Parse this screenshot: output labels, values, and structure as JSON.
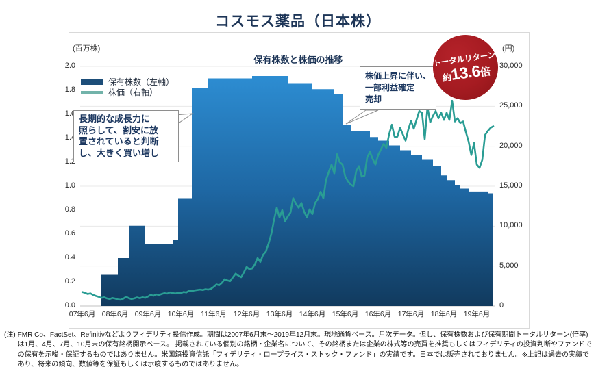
{
  "page": {
    "title": "コスモス薬品（日本株）"
  },
  "chart_data": {
    "type": "combo",
    "title": "保有株数と株価の推移",
    "x_axis": {
      "start": "2007-06",
      "end": "2019-12",
      "tick_labels": [
        "07年6月",
        "08年6月",
        "09年6月",
        "10年6月",
        "11年6月",
        "12年6月",
        "13年6月",
        "14年6月",
        "15年6月",
        "16年6月",
        "17年6月",
        "18年6月",
        "19年6月"
      ]
    },
    "left_axis": {
      "unit": "(百万株)",
      "label": "保有株数",
      "ylim": [
        0,
        2.0
      ],
      "tick_labels": [
        "2.0",
        "1.8",
        "1.6",
        "1.4",
        "1.2",
        "1.0",
        "0.8",
        "0.6",
        "0.4",
        "0.2",
        "0.0"
      ]
    },
    "right_axis": {
      "unit": "(円)",
      "label": "株価",
      "ylim": [
        0,
        30000
      ],
      "tick_labels": [
        "30,000",
        "25,000",
        "20,000",
        "15,000",
        "10,000",
        "5,000",
        "0"
      ]
    },
    "grid": "horizontal, every 5000 yen",
    "legend_position": "top-left",
    "series": [
      {
        "name": "保有株数（左軸）",
        "type": "step-area",
        "axis": "left",
        "unit": "百万株",
        "points_month_value": [
          [
            7,
            0.26
          ],
          [
            13,
            0.4
          ],
          [
            17,
            0.67
          ],
          [
            23,
            0.52
          ],
          [
            33,
            0.55
          ],
          [
            35,
            0.9
          ],
          [
            40,
            1.82
          ],
          [
            46,
            1.9
          ],
          [
            62,
            1.92
          ],
          [
            75,
            1.86
          ],
          [
            84,
            1.81
          ],
          [
            92,
            1.77
          ],
          [
            95,
            1.51
          ],
          [
            98,
            1.46
          ],
          [
            105,
            1.41
          ],
          [
            108,
            1.38
          ],
          [
            112,
            1.34
          ],
          [
            116,
            1.3
          ],
          [
            120,
            1.26
          ],
          [
            124,
            1.22
          ],
          [
            128,
            1.17
          ],
          [
            131,
            1.09
          ],
          [
            133,
            1.05
          ],
          [
            136,
            1.01
          ],
          [
            138,
            0.98
          ],
          [
            141,
            0.955
          ],
          [
            148,
            0.94
          ]
        ],
        "end_month": 150
      },
      {
        "name": "株価（右軸）",
        "type": "line",
        "axis": "right",
        "unit": "円",
        "monthly_values": [
          1750,
          1650,
          1500,
          1580,
          1380,
          1250,
          1150,
          1000,
          1100,
          950,
          870,
          1000,
          930,
          820,
          780,
          920,
          1150,
          980,
          870,
          950,
          1070,
          980,
          1090,
          1020,
          1180,
          1400,
          1280,
          1450,
          1380,
          1500,
          1600,
          1550,
          1700,
          1620,
          1560,
          1650,
          1600,
          1750,
          1700,
          1900,
          1850,
          1950,
          2000,
          2050,
          2000,
          2100,
          2050,
          2150,
          2400,
          2700,
          2600,
          2900,
          3350,
          3200,
          3100,
          3600,
          4050,
          3800,
          3600,
          4200,
          4900,
          4600,
          4700,
          5200,
          6000,
          5500,
          6400,
          6800,
          7800,
          9000,
          10800,
          12300,
          11100,
          12000,
          10600,
          11200,
          11700,
          13500,
          12800,
          12300,
          12900,
          11800,
          11100,
          12100,
          11500,
          12900,
          13400,
          14300,
          13500,
          15800,
          16800,
          17700,
          16600,
          19000,
          18000,
          17700,
          16200,
          15600,
          15200,
          15000,
          16900,
          17500,
          16200,
          16300,
          18600,
          19300,
          18400,
          17700,
          18900,
          19600,
          20300,
          19800,
          21500,
          22700,
          21200,
          21200,
          22300,
          21500,
          20700,
          22100,
          23200,
          22200,
          23300,
          24400,
          24200,
          20900,
          24900,
          23000,
          23800,
          24400,
          23500,
          24200,
          23300,
          24200,
          23300,
          25700,
          23100,
          23500,
          22900,
          23100,
          21800,
          20600,
          18900,
          20400,
          17700,
          17300,
          18300,
          21400,
          21900,
          22300,
          22500
        ]
      }
    ],
    "colors": {
      "area_top": "#2e90d6",
      "area_mid": "#1e67a3",
      "area_bottom": "#113a5e",
      "price_line": "#2a9d94",
      "legend_holdings_swatch": "#1d4e79",
      "legend_price_swatch": "#72b3aa",
      "badge_bg": "#a81d23",
      "navy_text": "#1d3557",
      "grid": "#e8e8e8"
    }
  },
  "annotations": {
    "buy": {
      "lines": [
        "長期的な成長力に",
        "照らして、割安に放",
        "置されていると判断",
        "し、大きく買い増し"
      ]
    },
    "sell": {
      "lines": [
        "株価上昇に伴い、",
        "一部利益確定",
        "売却"
      ]
    }
  },
  "badge": {
    "line1": "トータルリターン",
    "prefix": "約",
    "number": "13.6",
    "suffix": "倍"
  },
  "footnote": {
    "label": "(注)",
    "text": "FMR Co、FactSet、Refinitivなどよりフィデリティ投信作成。期間は2007年6月末～2019年12月末。現地通貨ベース。月次データ。但し、保有株数および保有期間トータルリターン(倍率)は1月、4月、7月、10月末の保有銘柄開示ベース。 掲載されている個別の銘柄・企業名について、その銘柄または企業の株式等の売買を推奨もしくはフィデリティの投資判断やファンドでの保有を示唆・保証するものではありません。米国籍投資信託「フィデリティ・ロープライス・ストック・ファンド」の実績です。日本では販売されておりません。※上記は過去の実績であり、将来の傾向、数値等を保証もしくは示唆するものではありません。"
  }
}
